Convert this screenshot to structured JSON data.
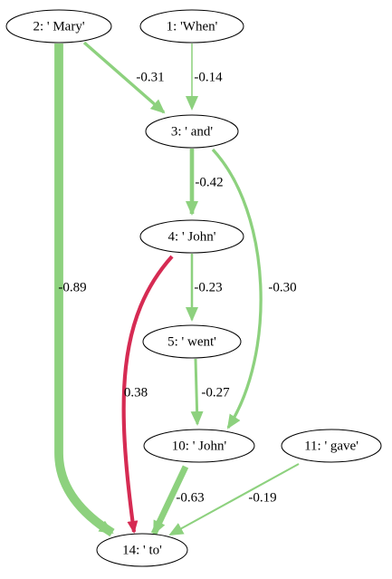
{
  "nodes": [
    {
      "label": "2: ' Mary'"
    },
    {
      "label": "1: 'When'"
    },
    {
      "label": "3: ' and'"
    },
    {
      "label": "4: ' John'"
    },
    {
      "label": "5: ' went'"
    },
    {
      "label": "10: ' John'"
    },
    {
      "label": "11: ' gave'"
    },
    {
      "label": "14: ' to'"
    }
  ],
  "edges": [
    {
      "label": "-0.89"
    },
    {
      "label": "-0.31"
    },
    {
      "label": "-0.14"
    },
    {
      "label": "-0.42"
    },
    {
      "label": "-0.30"
    },
    {
      "label": "0.38"
    },
    {
      "label": "-0.23"
    },
    {
      "label": "-0.27"
    },
    {
      "label": "-0.63"
    },
    {
      "label": "-0.19"
    }
  ]
}
